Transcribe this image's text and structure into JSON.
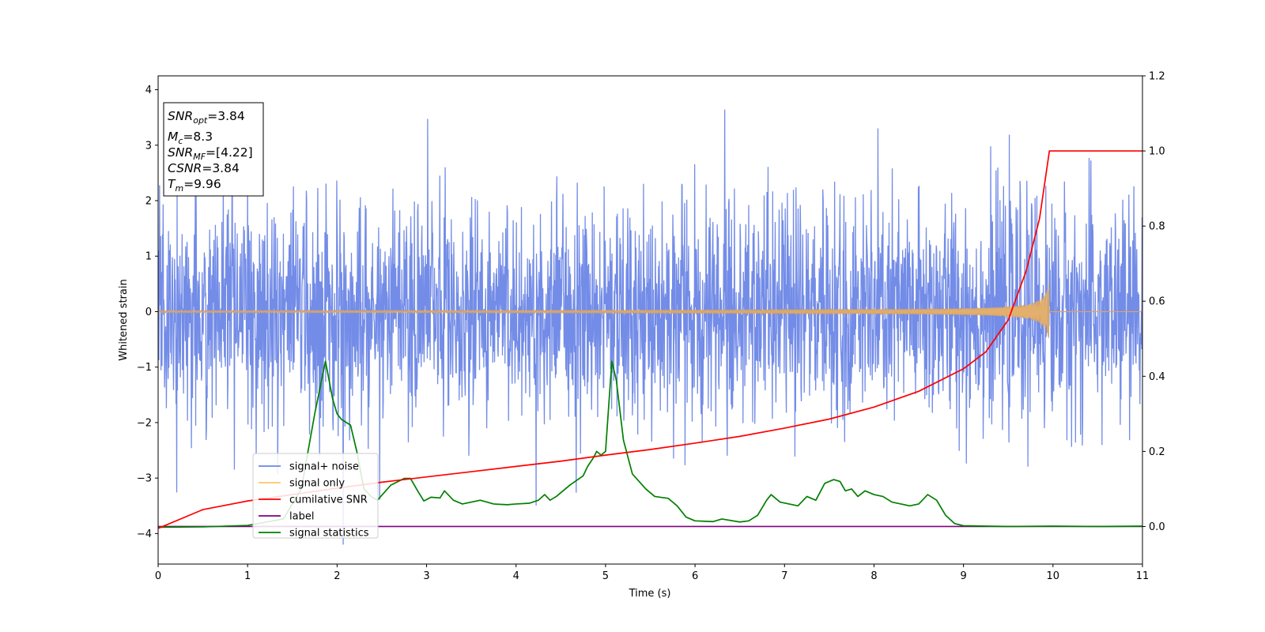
{
  "chart_data": {
    "type": "line",
    "xlabel": "Time (s)",
    "ylabel": "Whitened strain",
    "xlim": [
      0,
      11
    ],
    "ylim": [
      -4.55,
      4.25
    ],
    "y2lim": [
      -0.1,
      1.2
    ],
    "x_ticks": [
      "0",
      "1",
      "2",
      "3",
      "4",
      "5",
      "6",
      "7",
      "8",
      "9",
      "10",
      "11"
    ],
    "y_ticks": [
      "−4",
      "−3",
      "−2",
      "−1",
      "0",
      "1",
      "2",
      "3",
      "4"
    ],
    "y2_ticks": [
      "0.0",
      "0.2",
      "0.4",
      "0.6",
      "0.8",
      "1.0",
      "1.2"
    ],
    "info_box": {
      "snr_opt": {
        "sym": "SNR",
        "sub": "opt",
        "val": "=3.84"
      },
      "mc": {
        "sym": "M",
        "sub": "c",
        "val": "=8.3"
      },
      "snr_mf": {
        "sym": "SNR",
        "sub": "MF",
        "val": "=[4.22]"
      },
      "csnr": {
        "sym": "CSNR",
        "sub": "",
        "val": "=3.84"
      },
      "tm": {
        "sym": "T",
        "sub": "m",
        "val": "=9.96"
      }
    },
    "legend_placement": "lower-left",
    "series": [
      {
        "name": "signal+ noise",
        "color": "#6b86e6",
        "axis": "left",
        "description_stats": {
          "mean": 0,
          "std": 1.0,
          "samples_per_second": 250,
          "seed": 7
        }
      },
      {
        "name": "signal only",
        "color": "#ffc46b",
        "axis": "left",
        "chirp": {
          "t_merge": 9.96,
          "amp_start": 0.01,
          "amp_end": 0.55
        }
      },
      {
        "name": "cumilative SNR",
        "color": "#ff0000",
        "axis": "right",
        "points": [
          [
            0,
            -0.005
          ],
          [
            0.5,
            0.045
          ],
          [
            1,
            0.068
          ],
          [
            1.5,
            0.085
          ],
          [
            2,
            0.102
          ],
          [
            2.5,
            0.118
          ],
          [
            3,
            0.132
          ],
          [
            3.5,
            0.146
          ],
          [
            4,
            0.16
          ],
          [
            4.5,
            0.174
          ],
          [
            5,
            0.19
          ],
          [
            5.5,
            0.205
          ],
          [
            6,
            0.222
          ],
          [
            6.5,
            0.24
          ],
          [
            7,
            0.262
          ],
          [
            7.5,
            0.286
          ],
          [
            8,
            0.318
          ],
          [
            8.5,
            0.36
          ],
          [
            9,
            0.42
          ],
          [
            9.25,
            0.465
          ],
          [
            9.5,
            0.55
          ],
          [
            9.7,
            0.68
          ],
          [
            9.85,
            0.82
          ],
          [
            9.96,
            1.0
          ],
          [
            11,
            1.0
          ]
        ]
      },
      {
        "name": "label",
        "color": "#800080",
        "axis": "right",
        "points": [
          [
            0,
            0.0
          ],
          [
            11,
            0.0
          ]
        ]
      },
      {
        "name": "signal statistics",
        "color": "#008000",
        "axis": "right",
        "points": [
          [
            0,
            -0.002
          ],
          [
            0.5,
            -0.001
          ],
          [
            1,
            0.003
          ],
          [
            1.4,
            0.02
          ],
          [
            1.6,
            0.1
          ],
          [
            1.75,
            0.3
          ],
          [
            1.87,
            0.44
          ],
          [
            1.95,
            0.34
          ],
          [
            2.0,
            0.3
          ],
          [
            2.05,
            0.285
          ],
          [
            2.15,
            0.27
          ],
          [
            2.22,
            0.2
          ],
          [
            2.3,
            0.1
          ],
          [
            2.38,
            0.08
          ],
          [
            2.45,
            0.07
          ],
          [
            2.6,
            0.11
          ],
          [
            2.75,
            0.128
          ],
          [
            2.82,
            0.128
          ],
          [
            2.9,
            0.095
          ],
          [
            2.97,
            0.068
          ],
          [
            3.05,
            0.078
          ],
          [
            3.15,
            0.076
          ],
          [
            3.2,
            0.095
          ],
          [
            3.3,
            0.07
          ],
          [
            3.4,
            0.06
          ],
          [
            3.5,
            0.065
          ],
          [
            3.6,
            0.07
          ],
          [
            3.75,
            0.06
          ],
          [
            3.9,
            0.058
          ],
          [
            4.0,
            0.06
          ],
          [
            4.15,
            0.062
          ],
          [
            4.25,
            0.07
          ],
          [
            4.32,
            0.085
          ],
          [
            4.38,
            0.07
          ],
          [
            4.45,
            0.08
          ],
          [
            4.5,
            0.09
          ],
          [
            4.6,
            0.11
          ],
          [
            4.75,
            0.135
          ],
          [
            4.8,
            0.16
          ],
          [
            4.87,
            0.185
          ],
          [
            4.9,
            0.2
          ],
          [
            4.95,
            0.19
          ],
          [
            5.0,
            0.2
          ],
          [
            5.07,
            0.44
          ],
          [
            5.12,
            0.39
          ],
          [
            5.2,
            0.23
          ],
          [
            5.3,
            0.14
          ],
          [
            5.45,
            0.1
          ],
          [
            5.55,
            0.08
          ],
          [
            5.7,
            0.075
          ],
          [
            5.8,
            0.055
          ],
          [
            5.9,
            0.025
          ],
          [
            6.0,
            0.015
          ],
          [
            6.2,
            0.013
          ],
          [
            6.3,
            0.02
          ],
          [
            6.5,
            0.012
          ],
          [
            6.6,
            0.015
          ],
          [
            6.7,
            0.03
          ],
          [
            6.75,
            0.05
          ],
          [
            6.8,
            0.07
          ],
          [
            6.85,
            0.085
          ],
          [
            6.95,
            0.065
          ],
          [
            7.05,
            0.06
          ],
          [
            7.15,
            0.055
          ],
          [
            7.25,
            0.08
          ],
          [
            7.35,
            0.07
          ],
          [
            7.45,
            0.115
          ],
          [
            7.55,
            0.125
          ],
          [
            7.62,
            0.12
          ],
          [
            7.68,
            0.095
          ],
          [
            7.75,
            0.1
          ],
          [
            7.82,
            0.08
          ],
          [
            7.9,
            0.095
          ],
          [
            8.0,
            0.085
          ],
          [
            8.1,
            0.08
          ],
          [
            8.2,
            0.065
          ],
          [
            8.3,
            0.06
          ],
          [
            8.4,
            0.055
          ],
          [
            8.5,
            0.06
          ],
          [
            8.6,
            0.085
          ],
          [
            8.7,
            0.07
          ],
          [
            8.8,
            0.03
          ],
          [
            8.9,
            0.008
          ],
          [
            9.0,
            0.002
          ],
          [
            9.5,
            0.0
          ],
          [
            10,
            0.001
          ],
          [
            10.5,
            0.0
          ],
          [
            11,
            0.001
          ]
        ]
      }
    ]
  }
}
